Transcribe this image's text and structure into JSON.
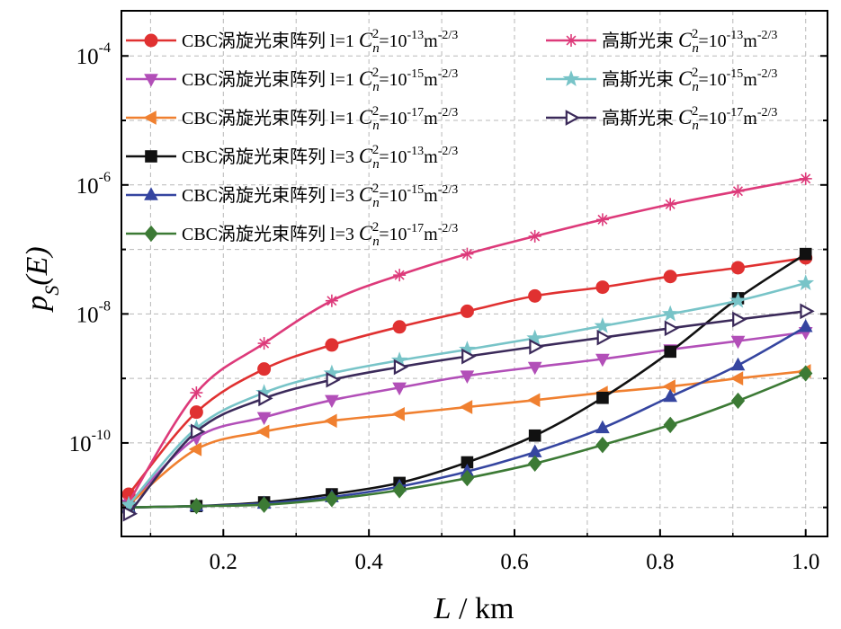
{
  "chart_data": {
    "type": "line",
    "xlabel": {
      "main": "L",
      "unit": " / km"
    },
    "ylabel": {
      "base": "p",
      "sub": "S",
      "arg": "(E)"
    },
    "xlim": [
      0.06,
      1.03
    ],
    "ylim_log10": [
      -11.45,
      -3.3
    ],
    "y_scale": "log",
    "grid": true,
    "legend_placement": "top-left, two columns",
    "x_ticks": [
      {
        "value": 0.2,
        "label": "0.2"
      },
      {
        "value": 0.4,
        "label": "0.4"
      },
      {
        "value": 0.6,
        "label": "0.6"
      },
      {
        "value": 0.8,
        "label": "0.8"
      },
      {
        "value": 1.0,
        "label": "1.0"
      }
    ],
    "y_ticks": [
      {
        "value": -10,
        "base": "10",
        "exp": "-10"
      },
      {
        "value": -8,
        "base": "10",
        "exp": "-8"
      },
      {
        "value": -6,
        "base": "10",
        "exp": "-6"
      },
      {
        "value": -4,
        "base": "10",
        "exp": "-4"
      }
    ],
    "x": [
      0.07,
      0.163,
      0.256,
      0.349,
      0.442,
      0.535,
      0.628,
      0.721,
      0.814,
      0.907,
      1.0
    ],
    "series": [
      {
        "name": "CBC涡旋光束阵列 l=1",
        "cn2_exp": "-13",
        "unit_exp": "-2/3",
        "color": "#e03131",
        "marker": "circle",
        "values": [
          1.6e-11,
          3e-10,
          1.4e-09,
          3.3e-09,
          6.3e-09,
          1.1e-08,
          1.9e-08,
          2.6e-08,
          3.8e-08,
          5.2e-08,
          7.4e-08
        ]
      },
      {
        "name": "CBC涡旋光束阵列 l=1",
        "cn2_exp": "-15",
        "unit_exp": "-2/3",
        "color": "#b24fb8",
        "marker": "triangle-down",
        "values": [
          1.1e-11,
          1.2e-10,
          2.5e-10,
          4.6e-10,
          7.2e-10,
          1.1e-09,
          1.5e-09,
          2e-09,
          2.8e-09,
          3.8e-09,
          5.2e-09
        ]
      },
      {
        "name": "CBC涡旋光束阵列 l=1",
        "cn2_exp": "-17",
        "unit_exp": "-2/3",
        "color": "#f08030",
        "marker": "triangle-left",
        "values": [
          1.1e-11,
          8e-11,
          1.5e-10,
          2.2e-10,
          2.8e-10,
          3.6e-10,
          4.6e-10,
          6e-10,
          7.5e-10,
          1e-09,
          1.3e-09
        ]
      },
      {
        "name": "CBC涡旋光束阵列 l=3",
        "cn2_exp": "-13",
        "unit_exp": "-2/3",
        "color": "#111111",
        "marker": "square",
        "values": [
          1e-11,
          1.05e-11,
          1.2e-11,
          1.6e-11,
          2.4e-11,
          5e-11,
          1.3e-10,
          5e-10,
          2.6e-09,
          1.75e-08,
          8.5e-08
        ]
      },
      {
        "name": "CBC涡旋光束阵列 l=3",
        "cn2_exp": "-15",
        "unit_exp": "-2/3",
        "color": "#3545a0",
        "marker": "triangle-up",
        "values": [
          1e-11,
          1.05e-11,
          1.15e-11,
          1.45e-11,
          2.1e-11,
          3.6e-11,
          7.2e-11,
          1.7e-10,
          5.2e-10,
          1.6e-09,
          6.3e-09
        ]
      },
      {
        "name": "CBC涡旋光束阵列 l=3",
        "cn2_exp": "-17",
        "unit_exp": "-2/3",
        "color": "#3c7a35",
        "marker": "diamond",
        "values": [
          1e-11,
          1.05e-11,
          1.1e-11,
          1.35e-11,
          1.85e-11,
          2.85e-11,
          4.8e-11,
          9.3e-11,
          1.9e-10,
          4.5e-10,
          1.2e-09
        ]
      },
      {
        "name": "高斯光束",
        "cn2_exp": "-13",
        "unit_exp": "-2/3",
        "color": "#dd3a7a",
        "marker": "star",
        "values": [
          1.2e-11,
          6e-10,
          3.5e-09,
          1.6e-08,
          4e-08,
          8.5e-08,
          1.6e-07,
          2.9e-07,
          5e-07,
          8e-07,
          1.25e-06
        ]
      },
      {
        "name": "高斯光束",
        "cn2_exp": "-15",
        "unit_exp": "-2/3",
        "color": "#78c4c8",
        "marker": "star5",
        "values": [
          1.1e-11,
          1.7e-10,
          6e-10,
          1.2e-09,
          1.9e-09,
          2.8e-09,
          4.2e-09,
          6.5e-09,
          1e-08,
          1.6e-08,
          3e-08
        ]
      },
      {
        "name": "高斯光束",
        "cn2_exp": "-17",
        "unit_exp": "-2/3",
        "color": "#3b2a5a",
        "marker": "triangle-right",
        "values": [
          8e-12,
          1.5e-10,
          4.9e-10,
          9.5e-10,
          1.5e-09,
          2.2e-09,
          3.1e-09,
          4.3e-09,
          6e-09,
          8.2e-09,
          1.1e-08
        ]
      }
    ],
    "legend_columns": [
      [
        0,
        1,
        2,
        3,
        4,
        5
      ],
      [
        6,
        7,
        8
      ]
    ]
  }
}
